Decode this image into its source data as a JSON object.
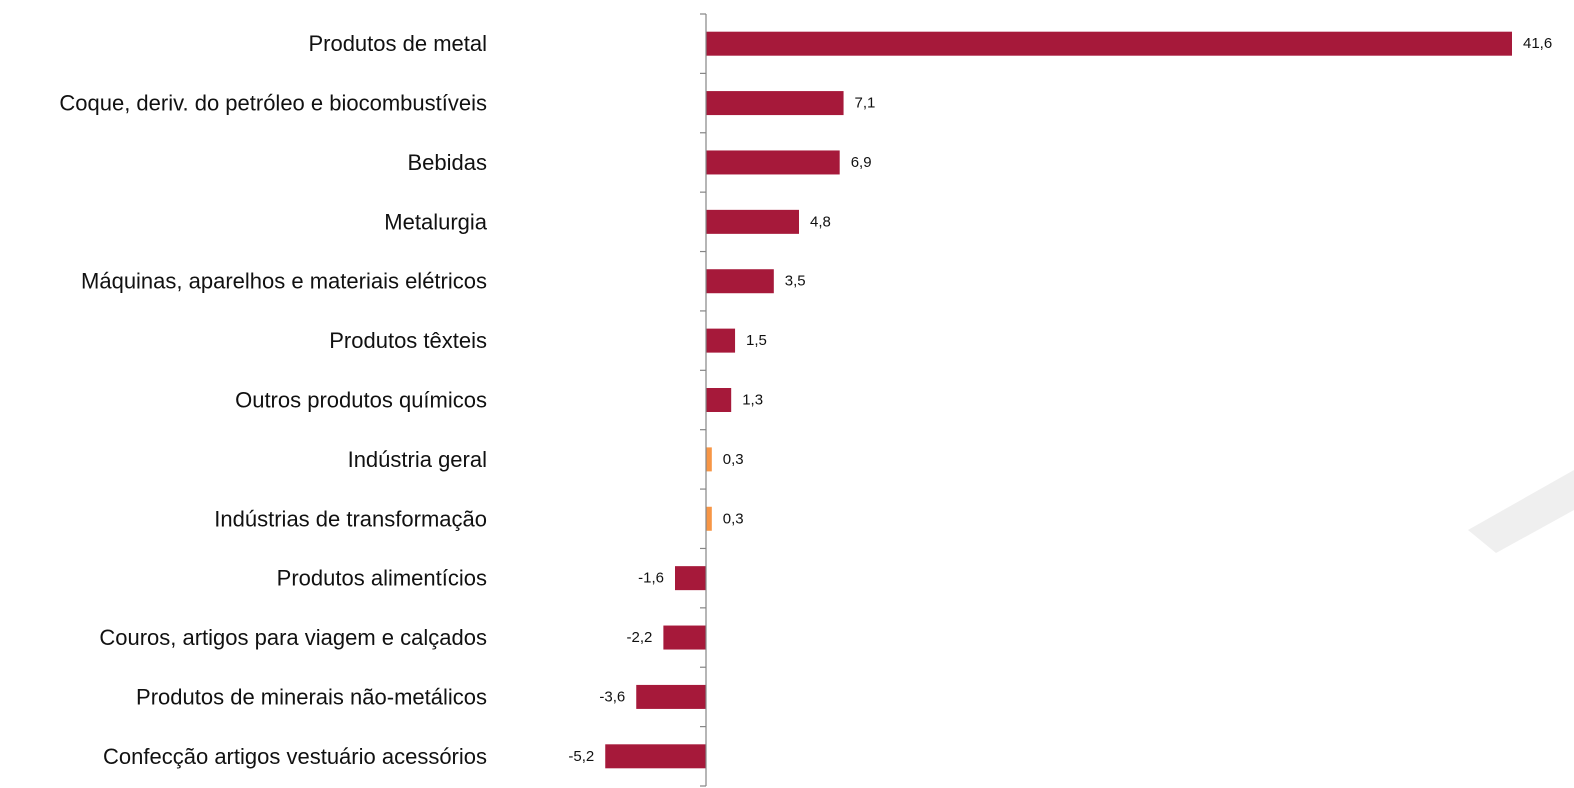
{
  "chart_data": {
    "type": "bar",
    "orientation": "horizontal",
    "categories": [
      "Produtos de metal",
      "Coque, deriv. do petróleo e biocombustíveis",
      "Bebidas",
      "Metalurgia",
      "Máquinas, aparelhos e materiais elétricos",
      "Produtos têxteis",
      "Outros produtos químicos",
      "Indústria geral",
      "Indústrias de transformação",
      "Produtos alimentícios",
      "Couros, artigos para viagem e calçados",
      "Produtos de minerais não-metálicos",
      "Confecção artigos vestuário acessórios"
    ],
    "values": [
      41.6,
      7.1,
      6.9,
      4.8,
      3.5,
      1.5,
      1.3,
      0.3,
      0.3,
      -1.6,
      -2.2,
      -3.6,
      -5.2
    ],
    "value_labels": [
      "41,6",
      "7,1",
      "6,9",
      "4,8",
      "3,5",
      "1,5",
      "1,3",
      "0,3",
      "0,3",
      "-1,6",
      "-2,2",
      "-3,6",
      "-5,2"
    ],
    "highlight": [
      false,
      false,
      false,
      false,
      false,
      false,
      false,
      true,
      true,
      false,
      false,
      false,
      false
    ],
    "colors": {
      "bar": "#A6193A",
      "highlight": "#F79646",
      "axis": "#868686"
    },
    "xlim": [
      -5.2,
      41.6
    ],
    "grid": false,
    "legend": "none"
  }
}
